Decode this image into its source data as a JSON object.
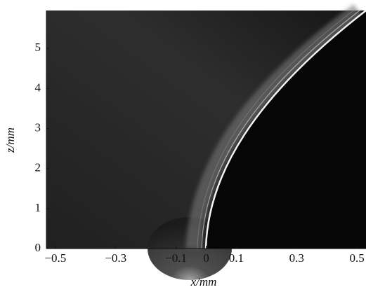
{
  "chart_data": {
    "type": "image",
    "xlabel": "x/mm",
    "ylabel": "z/mm",
    "xlim": [
      -0.53,
      0.53
    ],
    "ylim": [
      0,
      5.95
    ],
    "xticks": [
      {
        "value": -0.5,
        "label": "−0.5"
      },
      {
        "value": -0.3,
        "label": "−0.3"
      },
      {
        "value": -0.1,
        "label": "−0.1"
      },
      0,
      0.1,
      0.3,
      0.5
    ],
    "yticks": [
      0,
      1,
      2,
      3,
      4,
      5
    ]
  }
}
